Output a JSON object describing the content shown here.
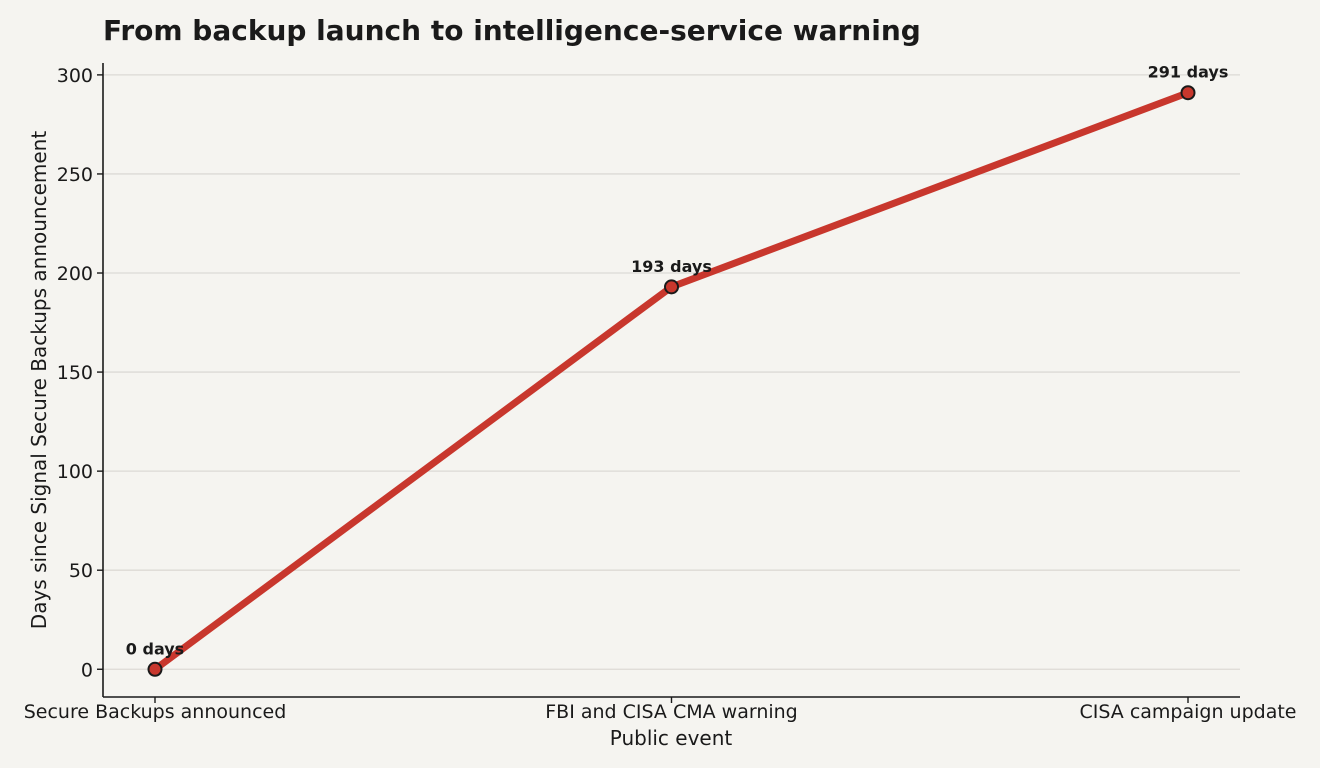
{
  "chart_data": {
    "type": "line",
    "title": "From backup launch to intelligence-service warning",
    "xlabel": "Public event",
    "ylabel": "Days since Signal Secure Backups announcement",
    "categories": [
      "Secure Backups announced",
      "FBI and CISA CMA warning",
      "CISA campaign update"
    ],
    "series": [
      {
        "values": [
          0,
          193,
          291
        ],
        "data_labels": [
          "0 days",
          "193 days",
          "291 days"
        ],
        "color": "#c8372d"
      }
    ],
    "ylim": [
      -14,
      306
    ],
    "yticks": [
      0,
      50,
      100,
      150,
      200,
      250,
      300
    ],
    "grid": "horizontal",
    "colors": {
      "background": "#f5f4f0",
      "line": "#c8372d",
      "marker_edge": "#1a1a1a",
      "grid": "#dcdad5"
    }
  }
}
